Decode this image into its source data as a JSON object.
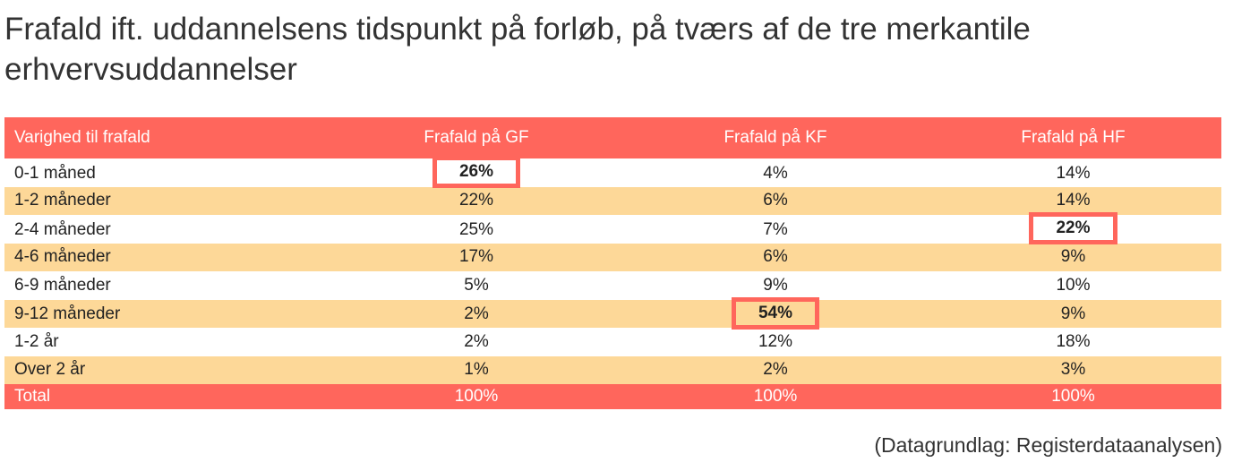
{
  "chart_data": {
    "type": "table",
    "title": "Frafald ift. uddannelsens tidspunkt på forløb, på tværs af de tre merkantile erhvervsuddannelser",
    "columns": [
      "Varighed til frafald",
      "Frafald på GF",
      "Frafald på KF",
      "Frafald på HF"
    ],
    "rows": [
      {
        "label": "0-1 måned",
        "values": [
          "26%",
          "4%",
          "14%"
        ],
        "highlight": 0
      },
      {
        "label": "1-2 måneder",
        "values": [
          "22%",
          "6%",
          "14%"
        ],
        "highlight": -1
      },
      {
        "label": "2-4 måneder",
        "values": [
          "25%",
          "7%",
          "22%"
        ],
        "highlight": 2
      },
      {
        "label": "4-6 måneder",
        "values": [
          "17%",
          "6%",
          "9%"
        ],
        "highlight": -1
      },
      {
        "label": "6-9 måneder",
        "values": [
          "5%",
          "9%",
          "10%"
        ],
        "highlight": -1
      },
      {
        "label": "9-12 måneder",
        "values": [
          "2%",
          "54%",
          "9%"
        ],
        "highlight": 1
      },
      {
        "label": "1-2 år",
        "values": [
          "2%",
          "12%",
          "18%"
        ],
        "highlight": -1
      },
      {
        "label": "Over 2 år",
        "values": [
          "1%",
          "2%",
          "3%"
        ],
        "highlight": -1
      }
    ],
    "total": {
      "label": "Total",
      "values": [
        "100%",
        "100%",
        "100%"
      ]
    },
    "source": "(Datagrundlag: Registerdataanalysen)",
    "colors": {
      "header": "#ff665c",
      "stripe": "#fdd898",
      "highlight_border": "#ff665c"
    }
  }
}
